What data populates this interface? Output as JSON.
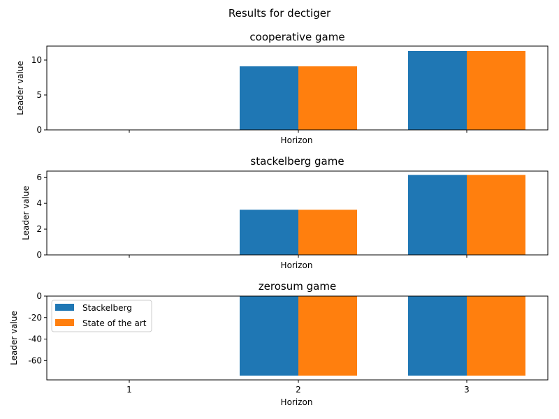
{
  "figure_title": "Results for dectiger",
  "colors": {
    "Stackelberg": "#1f77b4",
    "State of the art": "#ff7f0e"
  },
  "chart_data": [
    {
      "type": "bar",
      "title": "cooperative game",
      "xlabel": "Horizon",
      "ylabel": "Leader value",
      "categories": [
        "1",
        "2",
        "3"
      ],
      "show_xtick_labels": false,
      "ylim": [
        0,
        12
      ],
      "yticks": [
        0,
        5,
        10
      ],
      "series": [
        {
          "name": "Stackelberg",
          "values": [
            0,
            9.1,
            11.3
          ]
        },
        {
          "name": "State of the art",
          "values": [
            0,
            9.1,
            11.3
          ]
        }
      ]
    },
    {
      "type": "bar",
      "title": "stackelberg game",
      "xlabel": "Horizon",
      "ylabel": "Leader value",
      "categories": [
        "1",
        "2",
        "3"
      ],
      "show_xtick_labels": false,
      "ylim": [
        0,
        6.5
      ],
      "yticks": [
        0,
        2,
        4,
        6
      ],
      "series": [
        {
          "name": "Stackelberg",
          "values": [
            0,
            3.5,
            6.2
          ]
        },
        {
          "name": "State of the art",
          "values": [
            0,
            3.5,
            6.2
          ]
        }
      ]
    },
    {
      "type": "bar",
      "title": "zerosum game",
      "xlabel": "Horizon",
      "ylabel": "Leader value",
      "categories": [
        "1",
        "2",
        "3"
      ],
      "show_xtick_labels": true,
      "ylim": [
        -78,
        0
      ],
      "yticks": [
        -60,
        -40,
        -20,
        0
      ],
      "legend": "upper-left",
      "series": [
        {
          "name": "Stackelberg",
          "values": [
            0,
            -74,
            -74
          ]
        },
        {
          "name": "State of the art",
          "values": [
            0,
            -74,
            -74
          ]
        }
      ]
    }
  ]
}
